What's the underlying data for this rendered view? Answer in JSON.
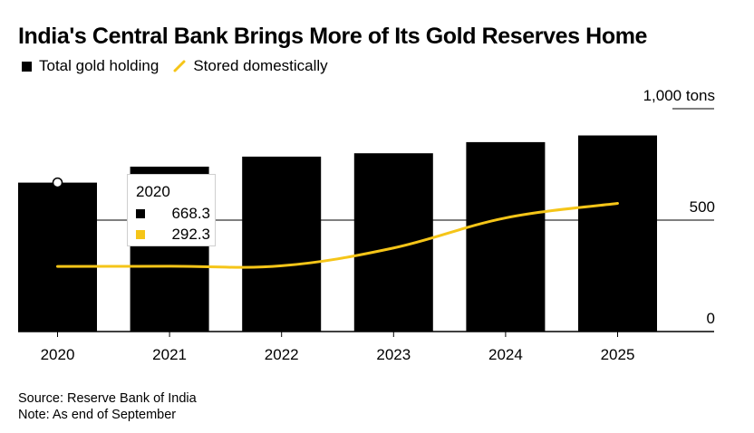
{
  "title": "India's Central Bank Brings More of Its Gold Reserves Home",
  "legend": {
    "total_label": "Total gold holding",
    "domestic_label": "Stored domestically"
  },
  "colors": {
    "total": "#000000",
    "domestic": "#f5c518",
    "grid": "#000000"
  },
  "chart_data": {
    "type": "bar",
    "title": "India's Central Bank Brings More of Its Gold Reserves Home",
    "categories": [
      "2020",
      "2021",
      "2022",
      "2023",
      "2024",
      "2025"
    ],
    "series": [
      {
        "name": "Total gold holding",
        "type": "bar",
        "values": [
          668.3,
          740,
          785,
          800,
          850,
          880
        ]
      },
      {
        "name": "Stored domestically",
        "type": "line",
        "values": [
          292.3,
          293,
          295,
          375,
          510,
          575
        ]
      }
    ],
    "y_axis": {
      "unit_label": "1,000 tons",
      "ticks": [
        0,
        500,
        1000
      ],
      "tick_labels": [
        "0",
        "500",
        "1,000 tons"
      ],
      "ylim": [
        0,
        1000
      ]
    },
    "xlabel": "",
    "ylabel": "tons"
  },
  "tooltip": {
    "year": "2020",
    "total_value": "668.3",
    "domestic_value": "292.3"
  },
  "footer": {
    "source": "Source: Reserve Bank of India",
    "note": "Note: As end of September"
  }
}
